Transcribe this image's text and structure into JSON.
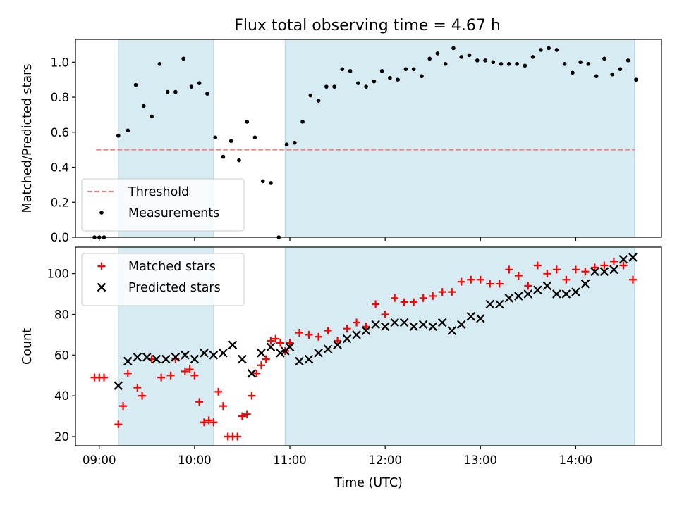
{
  "chart_data": [
    {
      "type": "scatter",
      "title": "Flux total observing time = 4.67 h",
      "ylabel": "Matched/Predicted stars",
      "xlabel": "",
      "x_is_time": true,
      "xlim": [
        "08:45",
        "14:54"
      ],
      "ylim": [
        0,
        1.13
      ],
      "yticks": [
        0,
        0.2,
        0.4,
        0.6,
        0.8,
        1.0
      ],
      "yticklabels": [
        "0.0",
        "0.2",
        "0.4",
        "0.6",
        "0.8",
        "1.0"
      ],
      "xticks": [
        "09:00",
        "10:00",
        "11:00",
        "12:00",
        "13:00",
        "14:00"
      ],
      "show_xticklabels": false,
      "shaded_intervals": [
        [
          "09:12",
          "10:12"
        ],
        [
          "10:57",
          "14:37"
        ]
      ],
      "shade_color": "#add8e6",
      "threshold": {
        "name": "Threshold",
        "value": 0.5,
        "x_range": [
          "08:58",
          "14:37"
        ],
        "color": "#f08080"
      },
      "legend": {
        "location": "lower-left",
        "entries": [
          "Threshold",
          "Measurements"
        ]
      },
      "series": [
        {
          "name": "Measurements",
          "marker": "dot",
          "color": "#000000",
          "x": [
            "08:57",
            "09:00",
            "09:03",
            "09:12",
            "09:18",
            "09:23",
            "09:28",
            "09:33",
            "09:38",
            "09:43",
            "09:48",
            "09:53",
            "09:58",
            "10:03",
            "10:08",
            "10:13",
            "10:18",
            "10:23",
            "10:28",
            "10:33",
            "10:38",
            "10:43",
            "10:48",
            "10:53",
            "10:58",
            "11:03",
            "11:08",
            "11:13",
            "11:18",
            "11:23",
            "11:28",
            "11:33",
            "11:38",
            "11:43",
            "11:48",
            "11:53",
            "11:58",
            "12:03",
            "12:08",
            "12:13",
            "12:18",
            "12:23",
            "12:28",
            "12:33",
            "12:38",
            "12:43",
            "12:48",
            "12:53",
            "12:58",
            "13:03",
            "13:08",
            "13:13",
            "13:18",
            "13:23",
            "13:28",
            "13:33",
            "13:38",
            "13:43",
            "13:48",
            "13:53",
            "13:58",
            "14:03",
            "14:08",
            "14:13",
            "14:18",
            "14:23",
            "14:28",
            "14:33",
            "14:38"
          ],
          "values": [
            0,
            0,
            0,
            0.58,
            0.61,
            0.87,
            0.75,
            0.69,
            0.99,
            0.83,
            0.83,
            1.02,
            0.86,
            0.88,
            0.82,
            0.57,
            0.46,
            0.55,
            0.44,
            0.66,
            0.57,
            0.32,
            0.31,
            0,
            0.53,
            0.54,
            0.66,
            0.81,
            0.78,
            0.86,
            0.86,
            0.96,
            0.95,
            0.88,
            0.86,
            0.89,
            0.95,
            0.91,
            0.9,
            0.96,
            0.96,
            0.92,
            1.02,
            1.05,
            0.99,
            1.08,
            1.03,
            1.04,
            1.01,
            1.01,
            1.0,
            0.99,
            0.99,
            0.99,
            0.98,
            1.03,
            1.07,
            1.08,
            1.07,
            0.99,
            0.94,
            1.0,
            0.99,
            0.92,
            1.02,
            0.93,
            0.96,
            1.01,
            0.9
          ]
        }
      ]
    },
    {
      "type": "scatter",
      "title": "",
      "ylabel": "Count",
      "xlabel": "Time (UTC)",
      "x_is_time": true,
      "xlim": [
        "08:45",
        "14:54"
      ],
      "ylim": [
        15.5,
        113
      ],
      "yticks": [
        20,
        40,
        60,
        80,
        100
      ],
      "yticklabels": [
        "20",
        "40",
        "60",
        "80",
        "100"
      ],
      "xticks": [
        "09:00",
        "10:00",
        "11:00",
        "12:00",
        "13:00",
        "14:00"
      ],
      "show_xticklabels": true,
      "shaded_intervals": [
        [
          "09:12",
          "10:12"
        ],
        [
          "10:57",
          "14:37"
        ]
      ],
      "shade_color": "#add8e6",
      "legend": {
        "location": "upper-left",
        "entries": [
          "Matched stars",
          "Predicted stars"
        ]
      },
      "series": [
        {
          "name": "Matched stars",
          "marker": "plus",
          "color": "#ff0000",
          "x": [
            "08:57",
            "09:00",
            "09:03",
            "09:12",
            "09:15",
            "09:18",
            "09:24",
            "09:27",
            "09:33",
            "09:39",
            "09:45",
            "09:48",
            "09:54",
            "09:57",
            "10:00",
            "10:03",
            "10:06",
            "10:09",
            "10:12",
            "10:15",
            "10:18",
            "10:21",
            "10:24",
            "10:27",
            "10:30",
            "10:33",
            "10:36",
            "10:39",
            "10:42",
            "10:45",
            "10:48",
            "10:51",
            "10:54",
            "10:57",
            "11:00",
            "11:06",
            "11:12",
            "11:18",
            "11:24",
            "11:30",
            "11:36",
            "11:42",
            "11:48",
            "11:54",
            "12:00",
            "12:06",
            "12:12",
            "12:18",
            "12:24",
            "12:30",
            "12:36",
            "12:42",
            "12:48",
            "12:54",
            "13:00",
            "13:06",
            "13:12",
            "13:18",
            "13:24",
            "13:30",
            "13:36",
            "13:42",
            "13:48",
            "13:54",
            "14:00",
            "14:06",
            "14:12",
            "14:18",
            "14:24",
            "14:30",
            "14:36"
          ],
          "values": [
            49,
            49,
            49,
            26,
            35,
            51,
            44,
            40,
            58,
            49,
            50,
            58,
            52,
            53,
            50,
            37,
            27,
            28,
            27,
            42,
            35,
            20,
            20,
            20,
            30,
            31,
            40,
            51,
            55,
            58,
            67,
            68,
            66,
            62,
            66,
            71,
            70,
            69,
            72,
            67,
            73,
            76,
            74,
            85,
            80,
            88,
            86,
            86,
            88,
            89,
            91,
            91,
            96,
            97,
            97,
            95,
            95,
            102,
            99,
            94,
            104,
            100,
            102,
            97,
            102,
            101,
            103,
            104,
            106,
            104,
            97
          ]
        },
        {
          "name": "Predicted stars",
          "marker": "x",
          "color": "#000000",
          "x": [
            "09:12",
            "09:18",
            "09:24",
            "09:30",
            "09:36",
            "09:42",
            "09:48",
            "09:54",
            "10:00",
            "10:06",
            "10:12",
            "10:18",
            "10:24",
            "10:30",
            "10:36",
            "10:42",
            "10:48",
            "10:54",
            "10:57",
            "11:00",
            "11:06",
            "11:12",
            "11:18",
            "11:24",
            "11:30",
            "11:36",
            "11:42",
            "11:48",
            "11:54",
            "12:00",
            "12:06",
            "12:12",
            "12:18",
            "12:24",
            "12:30",
            "12:36",
            "12:42",
            "12:48",
            "12:54",
            "13:00",
            "13:06",
            "13:12",
            "13:18",
            "13:24",
            "13:30",
            "13:36",
            "13:42",
            "13:48",
            "13:54",
            "14:00",
            "14:06",
            "14:12",
            "14:18",
            "14:24",
            "14:30",
            "14:36"
          ],
          "values": [
            45,
            57,
            59,
            59,
            58,
            58,
            59,
            60,
            58,
            61,
            60,
            61,
            65,
            58,
            51,
            61,
            64,
            61,
            62,
            64,
            57,
            58,
            61,
            63,
            65,
            68,
            70,
            72,
            75,
            74,
            76,
            76,
            74,
            75,
            74,
            76,
            72,
            75,
            79,
            78,
            85,
            85,
            88,
            89,
            90,
            92,
            94,
            90,
            90,
            91,
            95,
            101,
            101,
            102,
            107,
            108
          ]
        }
      ]
    }
  ]
}
